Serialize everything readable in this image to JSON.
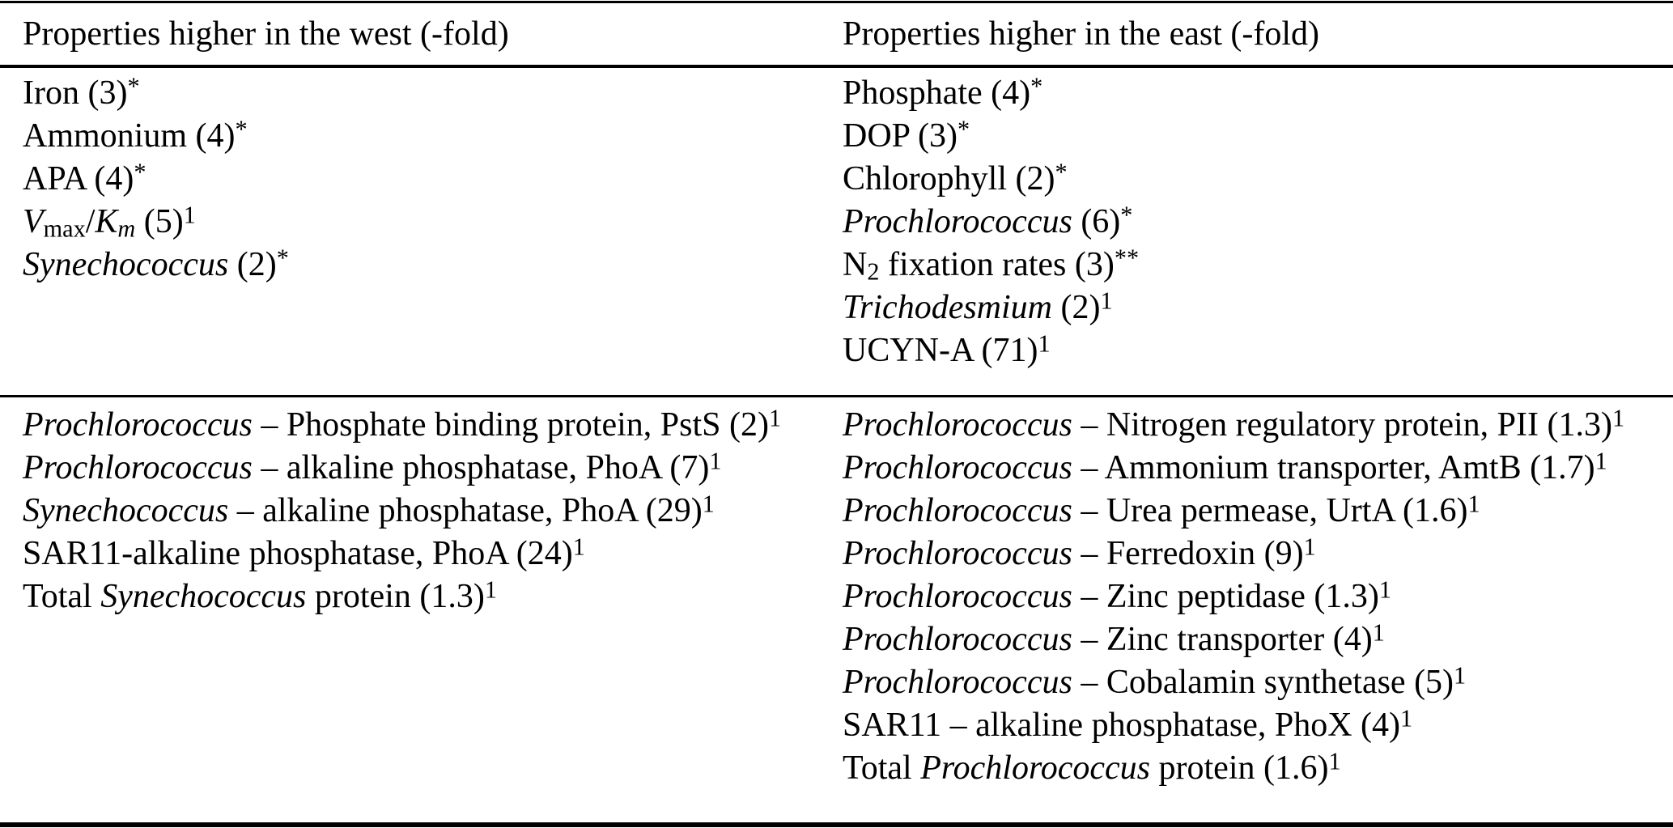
{
  "table": {
    "headers": {
      "west": "Properties higher in the west (-fold)",
      "east": "Properties higher in the east (-fold)"
    },
    "colors": {
      "text": "#000000",
      "background": "#ffffff",
      "rule": "#000000"
    },
    "footnote_markers_visible": [
      "*",
      "**",
      "1"
    ]
  },
  "rows": {
    "bulk_west": [
      [
        {
          "t": "Iron (3)"
        },
        {
          "t": "*",
          "s": "sup"
        }
      ],
      [
        {
          "t": "Ammonium (4)"
        },
        {
          "t": "*",
          "s": "sup"
        }
      ],
      [
        {
          "t": "APA (4)"
        },
        {
          "t": "*",
          "s": "sup"
        }
      ],
      [
        {
          "t": "V",
          "s": "i"
        },
        {
          "t": "max",
          "s": "sub"
        },
        {
          "t": "/"
        },
        {
          "t": "K",
          "s": "i"
        },
        {
          "t": "m",
          "s": "subi"
        },
        {
          "t": " (5)"
        },
        {
          "t": "1",
          "s": "sup"
        }
      ],
      [
        {
          "t": "Synechococcus",
          "s": "i"
        },
        {
          "t": " (2)"
        },
        {
          "t": "*",
          "s": "sup"
        }
      ]
    ],
    "bulk_east": [
      [
        {
          "t": "Phosphate (4)"
        },
        {
          "t": "*",
          "s": "sup"
        }
      ],
      [
        {
          "t": "DOP (3)"
        },
        {
          "t": "*",
          "s": "sup"
        }
      ],
      [
        {
          "t": "Chlorophyll (2)"
        },
        {
          "t": "*",
          "s": "sup"
        }
      ],
      [
        {
          "t": "Prochlorococcus",
          "s": "i"
        },
        {
          "t": " (6)"
        },
        {
          "t": "*",
          "s": "sup"
        }
      ],
      [
        {
          "t": "N"
        },
        {
          "t": "2",
          "s": "sub"
        },
        {
          "t": " fixation rates (3)"
        },
        {
          "t": "**",
          "s": "sup"
        }
      ],
      [
        {
          "t": "Trichodesmium",
          "s": "i"
        },
        {
          "t": " (2)"
        },
        {
          "t": "1",
          "s": "sup"
        }
      ],
      [
        {
          "t": "UCYN-A (71)"
        },
        {
          "t": "1",
          "s": "sup"
        }
      ]
    ],
    "protein_west": [
      [
        {
          "t": "Prochlorococcus",
          "s": "i"
        },
        {
          "t": " – Phosphate binding protein, PstS (2)"
        },
        {
          "t": "1",
          "s": "sup"
        }
      ],
      [
        {
          "t": "Prochlorococcus",
          "s": "i"
        },
        {
          "t": " – alkaline phosphatase, PhoA (7)"
        },
        {
          "t": "1",
          "s": "sup"
        }
      ],
      [
        {
          "t": "Synechococcus",
          "s": "i"
        },
        {
          "t": " – alkaline phosphatase, PhoA (29)"
        },
        {
          "t": "1",
          "s": "sup"
        }
      ],
      [
        {
          "t": "SAR11-alkaline phosphatase, PhoA (24)"
        },
        {
          "t": "1",
          "s": "sup"
        }
      ],
      [
        {
          "t": "Total "
        },
        {
          "t": "Synechococcus",
          "s": "i"
        },
        {
          "t": " protein (1.3)"
        },
        {
          "t": "1",
          "s": "sup"
        }
      ]
    ],
    "protein_east": [
      [
        {
          "t": "Prochlorococcus",
          "s": "i"
        },
        {
          "t": " – Nitrogen regulatory protein, PII (1.3)"
        },
        {
          "t": "1",
          "s": "sup"
        }
      ],
      [
        {
          "t": "Prochlorococcus",
          "s": "i"
        },
        {
          "t": " – Ammonium transporter, AmtB (1.7)"
        },
        {
          "t": "1",
          "s": "sup"
        }
      ],
      [
        {
          "t": "Prochlorococcus",
          "s": "i"
        },
        {
          "t": " – Urea permease, UrtA (1.6)"
        },
        {
          "t": "1",
          "s": "sup"
        }
      ],
      [
        {
          "t": "Prochlorococcus",
          "s": "i"
        },
        {
          "t": " – Ferredoxin (9)"
        },
        {
          "t": "1",
          "s": "sup"
        }
      ],
      [
        {
          "t": "Prochlorococcus",
          "s": "i"
        },
        {
          "t": " – Zinc peptidase (1.3)"
        },
        {
          "t": "1",
          "s": "sup"
        }
      ],
      [
        {
          "t": "Prochlorococcus",
          "s": "i"
        },
        {
          "t": " – Zinc transporter (4)"
        },
        {
          "t": "1",
          "s": "sup"
        }
      ],
      [
        {
          "t": "Prochlorococcus",
          "s": "i"
        },
        {
          "t": " – Cobalamin synthetase (5)"
        },
        {
          "t": "1",
          "s": "sup"
        }
      ],
      [
        {
          "t": "SAR11 – alkaline phosphatase, PhoX (4)"
        },
        {
          "t": "1",
          "s": "sup"
        }
      ],
      [
        {
          "t": "Total "
        },
        {
          "t": "Prochlorococcus",
          "s": "i"
        },
        {
          "t": " protein (1.6)"
        },
        {
          "t": "1",
          "s": "sup"
        }
      ]
    ]
  }
}
